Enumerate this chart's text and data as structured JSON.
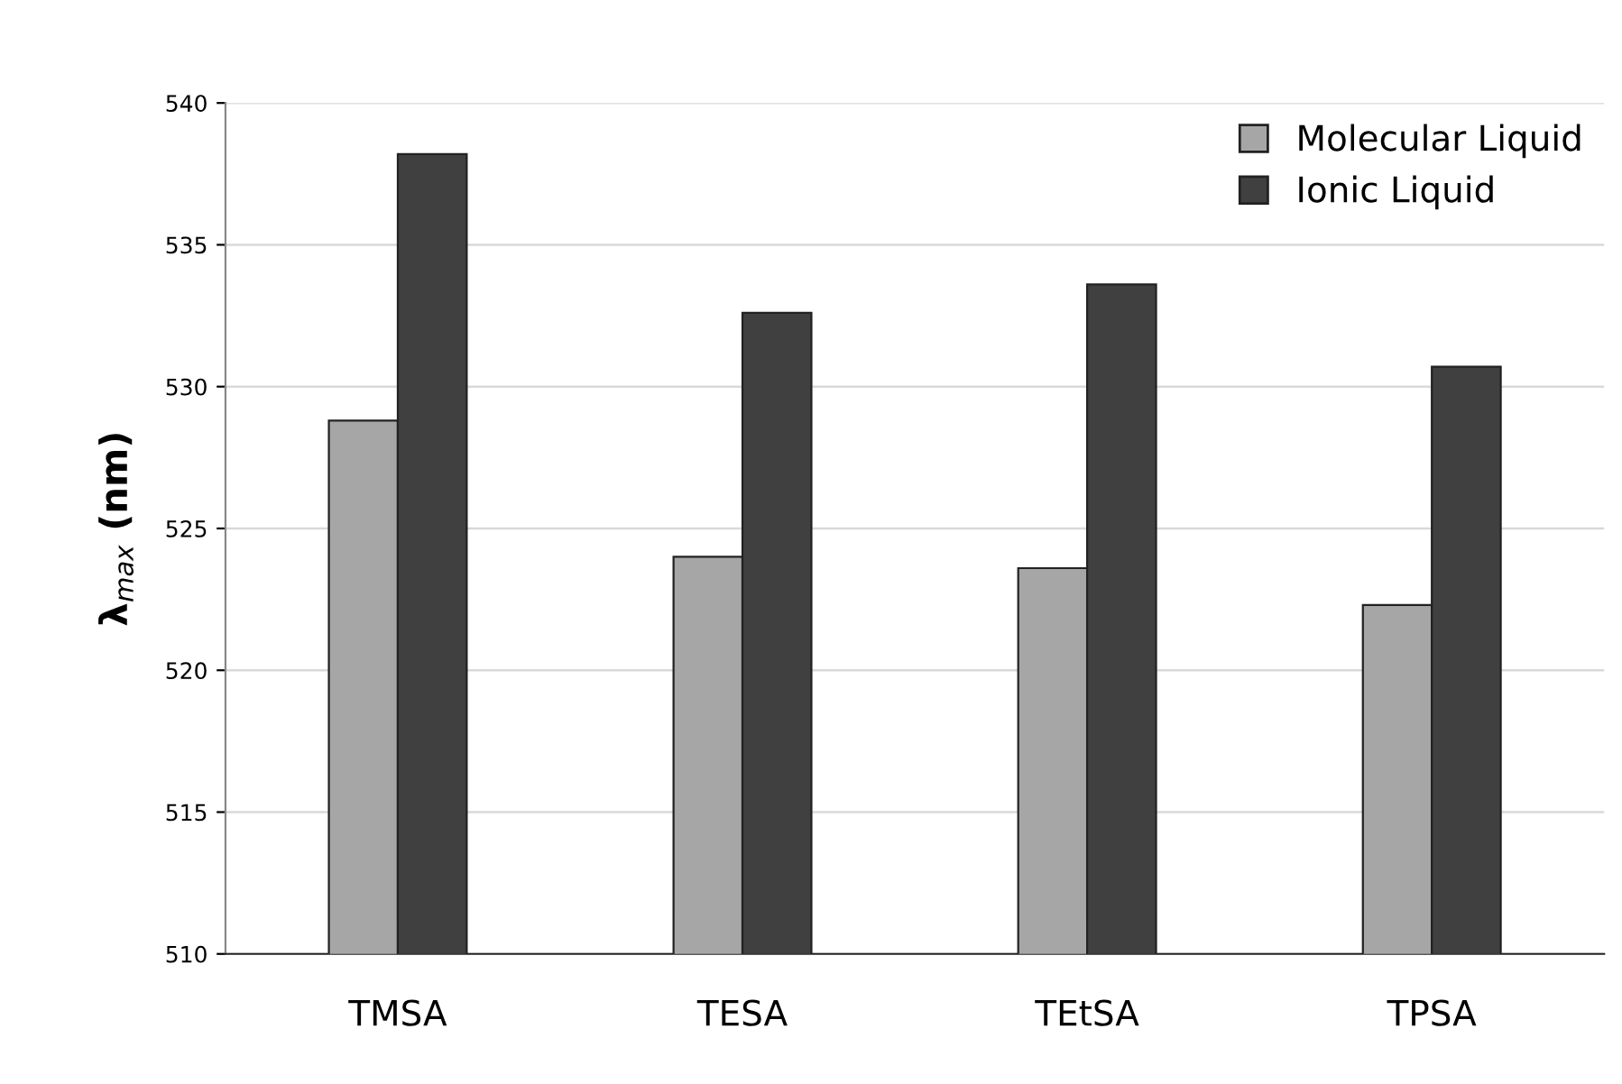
{
  "chart_data": {
    "type": "bar",
    "ylabel": "λ$_{max}$ (nm)",
    "categories": [
      "TMSA",
      "TESA",
      "TEtSA",
      "TPSA"
    ],
    "series": [
      {
        "name": "Molecular Liquid",
        "color": "#a6a6a6",
        "values": [
          528.8,
          524.0,
          523.6,
          522.3
        ]
      },
      {
        "name": "Ionic Liquid",
        "color": "#404040",
        "values": [
          538.2,
          532.6,
          533.6,
          530.7
        ]
      }
    ],
    "ylim": [
      510,
      540
    ],
    "yticks": [
      510,
      515,
      520,
      525,
      530,
      535,
      540
    ],
    "grid": "y",
    "legend": "top right"
  }
}
